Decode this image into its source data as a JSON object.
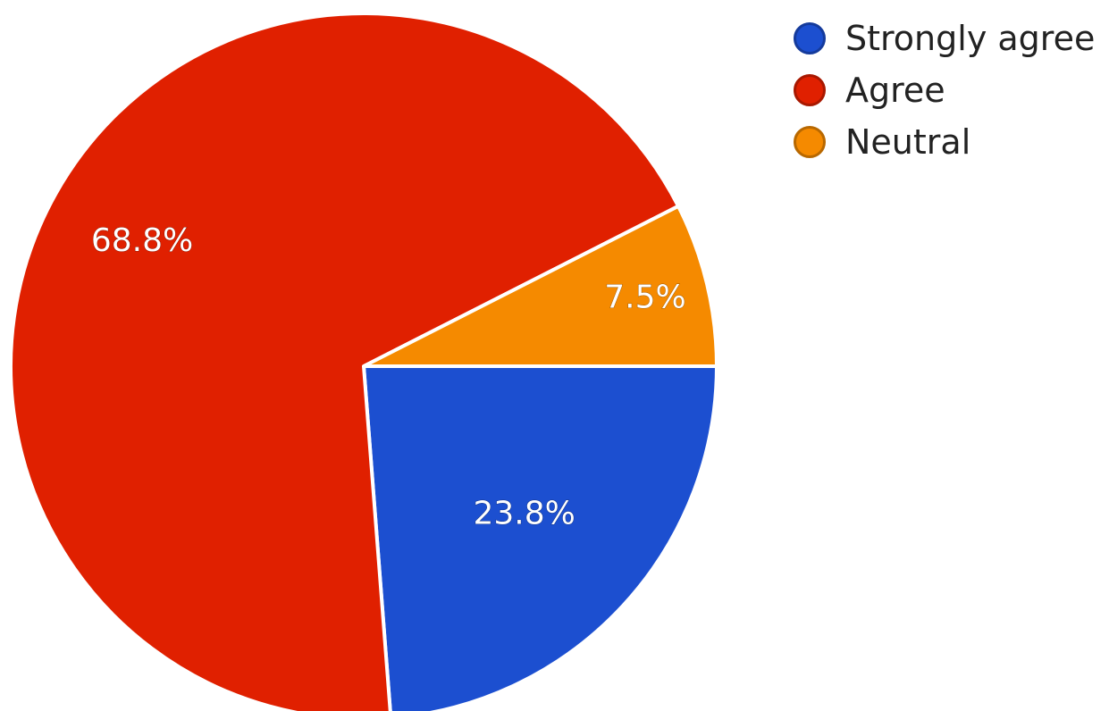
{
  "chart_data": {
    "type": "pie",
    "title": "",
    "slices": [
      {
        "label": "Strongly agree",
        "value": 23.8,
        "value_label": "23.8%",
        "color": "#1c4fd0"
      },
      {
        "label": "Agree",
        "value": 68.8,
        "value_label": "68.8%",
        "color": "#e02000"
      },
      {
        "label": "Neutral",
        "value": 7.5,
        "value_label": "7.5%",
        "color": "#f58a00"
      }
    ],
    "start_angle_deg": 0,
    "direction": "clockwise",
    "legend_position": "top-right"
  },
  "legend": {
    "items": [
      {
        "label": "Strongly agree",
        "color": "#1c4fd0"
      },
      {
        "label": "Agree",
        "color": "#e02000"
      },
      {
        "label": "Neutral",
        "color": "#f58a00"
      }
    ]
  }
}
